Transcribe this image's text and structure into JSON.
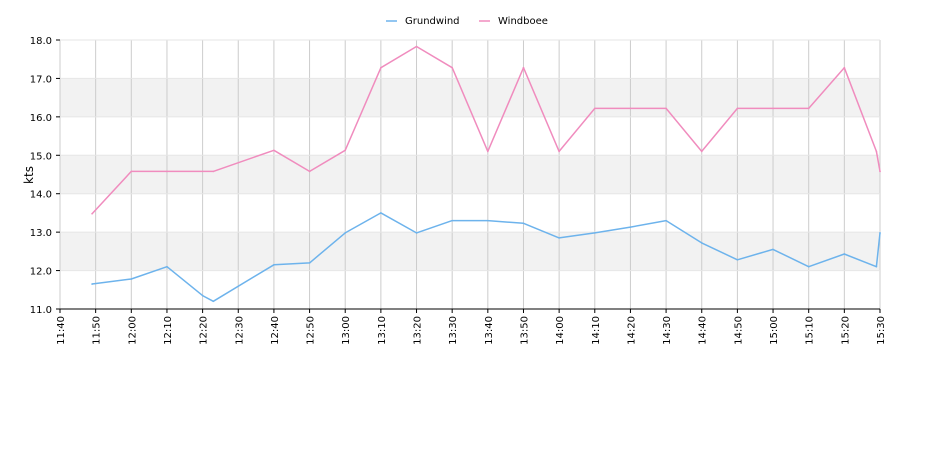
{
  "chart_data": {
    "type": "line",
    "ylabel": "kts",
    "xlabel": "",
    "title": "",
    "ylim": [
      11.0,
      18.0
    ],
    "yticks": [
      "11.0",
      "12.0",
      "13.0",
      "14.0",
      "15.0",
      "16.0",
      "17.0",
      "18.0"
    ],
    "xticks": [
      "11:40",
      "11:50",
      "12:00",
      "12:10",
      "12:20",
      "12:30",
      "12:40",
      "12:50",
      "13:00",
      "13:10",
      "13:20",
      "13:30",
      "13:40",
      "13:50",
      "14:00",
      "14:10",
      "14:20",
      "14:30",
      "14:40",
      "14:50",
      "15:00",
      "15:10",
      "15:20",
      "15:30"
    ],
    "xlim": [
      "11:40",
      "15:30"
    ],
    "legend_position": "top-center",
    "grid": true,
    "alternating_bands": true,
    "series": [
      {
        "name": "Grundwind",
        "color": "#6db3ec",
        "points": [
          [
            "11:49",
            11.65
          ],
          [
            "12:00",
            11.78
          ],
          [
            "12:10",
            12.1
          ],
          [
            "12:20",
            11.35
          ],
          [
            "12:23",
            11.2
          ],
          [
            "12:40",
            12.15
          ],
          [
            "12:50",
            12.2
          ],
          [
            "13:00",
            12.98
          ],
          [
            "13:10",
            13.5
          ],
          [
            "13:20",
            12.98
          ],
          [
            "13:30",
            13.3
          ],
          [
            "13:40",
            13.3
          ],
          [
            "13:50",
            13.23
          ],
          [
            "14:00",
            12.85
          ],
          [
            "14:10",
            12.98
          ],
          [
            "14:20",
            13.13
          ],
          [
            "14:30",
            13.3
          ],
          [
            "14:40",
            12.72
          ],
          [
            "14:50",
            12.28
          ],
          [
            "15:00",
            12.55
          ],
          [
            "15:10",
            12.1
          ],
          [
            "15:20",
            12.43
          ],
          [
            "15:29",
            12.1
          ],
          [
            "15:30",
            12.98
          ]
        ]
      },
      {
        "name": "Windboee",
        "color": "#f08cbe",
        "points": [
          [
            "11:49",
            13.48
          ],
          [
            "12:00",
            14.58
          ],
          [
            "12:10",
            14.58
          ],
          [
            "12:23",
            14.58
          ],
          [
            "12:40",
            15.13
          ],
          [
            "12:50",
            14.58
          ],
          [
            "13:00",
            15.13
          ],
          [
            "13:10",
            17.28
          ],
          [
            "13:20",
            17.83
          ],
          [
            "13:30",
            17.28
          ],
          [
            "13:40",
            15.1
          ],
          [
            "13:50",
            17.28
          ],
          [
            "14:00",
            15.1
          ],
          [
            "14:10",
            16.22
          ],
          [
            "14:20",
            16.22
          ],
          [
            "14:30",
            16.22
          ],
          [
            "14:40",
            15.1
          ],
          [
            "14:50",
            16.22
          ],
          [
            "15:00",
            16.22
          ],
          [
            "15:10",
            16.22
          ],
          [
            "15:20",
            17.28
          ],
          [
            "15:29",
            15.1
          ],
          [
            "15:30",
            14.58
          ]
        ]
      }
    ]
  }
}
